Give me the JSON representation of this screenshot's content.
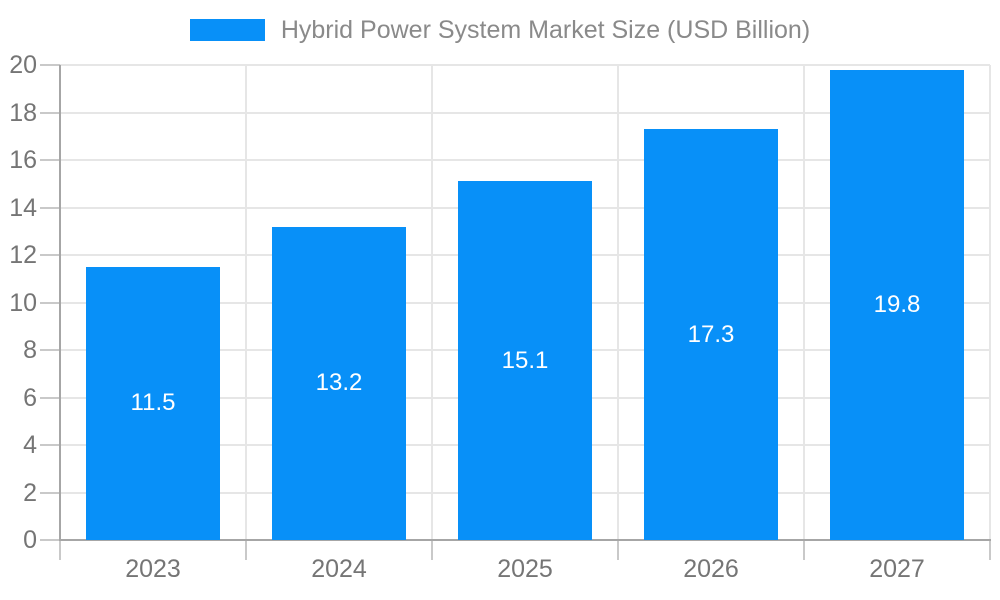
{
  "legend": {
    "label": "Hybrid Power System Market Size (USD Billion)"
  },
  "chart_data": {
    "type": "bar",
    "title": "Hybrid Power System Market Size (USD Billion)",
    "categories": [
      "2023",
      "2024",
      "2025",
      "2026",
      "2027"
    ],
    "values": [
      11.5,
      13.2,
      15.1,
      17.3,
      19.8
    ],
    "value_labels": [
      "11.5",
      "13.2",
      "15.1",
      "17.3",
      "19.8"
    ],
    "series": [
      {
        "name": "Hybrid Power System Market Size (USD Billion)",
        "values": [
          11.5,
          13.2,
          15.1,
          17.3,
          19.8
        ]
      }
    ],
    "xlabel": "",
    "ylabel": "",
    "ylim": [
      0,
      20
    ],
    "yticks": [
      0,
      2,
      4,
      6,
      8,
      10,
      12,
      14,
      16,
      18,
      20
    ],
    "grid": true,
    "legend_position": "top-center"
  },
  "colors": {
    "bar": "#0890F8",
    "grid": "#e6e6e6",
    "axis": "#a6a6a6",
    "tick": "#c9c9c9",
    "axis_label_text": "#757575",
    "legend_text": "#8a8a8a",
    "bar_label_text": "#ffffff",
    "background": "#ffffff"
  }
}
